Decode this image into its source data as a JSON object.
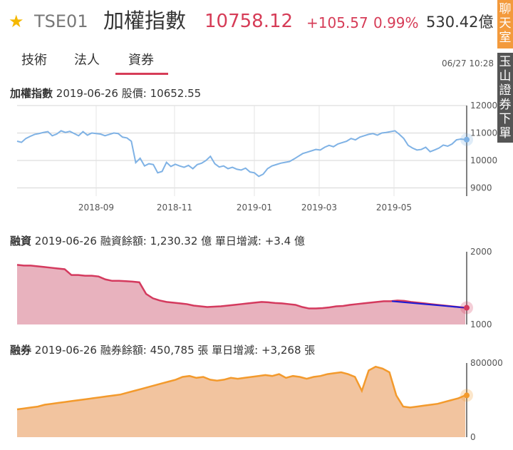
{
  "header": {
    "symbol": "TSE01",
    "name": "加權指數",
    "price": "10758.12",
    "change": "+105.57",
    "change_pct": "0.99%",
    "volume": "530.42億",
    "star_icon": "star-icon"
  },
  "tabs": [
    {
      "label": "技術",
      "active": false
    },
    {
      "label": "法人",
      "active": false
    },
    {
      "label": "資券",
      "active": true
    }
  ],
  "datetime": "06/27 10:28",
  "side_buttons": {
    "first": "聊天室",
    "second": "玉山證券下單"
  },
  "colors": {
    "up": "#d63c57",
    "index_line": "#7fb2e5",
    "margin_fill": "#e8b2be",
    "margin_line": "#d43a5e",
    "margin_trend": "#1a1ad6",
    "short_fill": "#f2c49f",
    "short_line": "#f39a2c",
    "tab_active": "#d63c57",
    "side_orange": "#f39a3c",
    "side_dark": "#555555"
  },
  "panels": {
    "index": {
      "name": "加權指數",
      "date": "2019-06-26",
      "metric": "股價:",
      "value": "10652.55"
    },
    "margin": {
      "name": "融資",
      "date": "2019-06-26",
      "text": "融資餘額: 1,230.32 億 單日增減: +3.4 億"
    },
    "short": {
      "name": "融券",
      "date": "2019-06-26",
      "text": "融券餘額: 450,785 張 單日增減: +3,268 張"
    }
  },
  "chart_data": [
    {
      "type": "line",
      "title": "加權指數 2019-06-26 股價: 10652.55",
      "x_ticks": [
        "2018-09",
        "2018-11",
        "2019-01",
        "2019-03",
        "2019-05"
      ],
      "y_ticks": [
        12000,
        11000,
        10000,
        9000
      ],
      "ylim": [
        8700,
        12000
      ],
      "series": [
        {
          "values": [
            10700,
            10660,
            10800,
            10880,
            10950,
            10980,
            11020,
            11050,
            10900,
            10960,
            11080,
            11020,
            11060,
            10980,
            10900,
            11050,
            10920,
            11000,
            10980,
            10960,
            10900,
            10950,
            11000,
            10980,
            10850,
            10820,
            10700,
            9920,
            10080,
            9800,
            9880,
            9850,
            9550,
            9600,
            9930,
            9780,
            9860,
            9800,
            9750,
            9820,
            9700,
            9850,
            9900,
            10000,
            10150,
            9880,
            9760,
            9800,
            9700,
            9750,
            9680,
            9650,
            9720,
            9580,
            9550,
            9420,
            9500,
            9700,
            9800,
            9850,
            9900,
            9930,
            9960,
            10050,
            10150,
            10250,
            10300,
            10350,
            10400,
            10380,
            10480,
            10550,
            10500,
            10600,
            10650,
            10700,
            10800,
            10750,
            10850,
            10900,
            10950,
            10980,
            10920,
            11000,
            11020,
            11050,
            11080,
            10950,
            10800,
            10550,
            10450,
            10380,
            10400,
            10480,
            10320,
            10380,
            10450,
            10560,
            10520,
            10600,
            10750,
            10780,
            10758
          ]
        }
      ],
      "grid": true
    },
    {
      "type": "area",
      "title": "融資 2019-06-26 融資餘額: 1,230.32 億 單日增減: +3.4 億",
      "y_ticks": [
        2000,
        1000
      ],
      "ylim": [
        1000,
        2000
      ],
      "series": [
        {
          "values": [
            1820,
            1810,
            1810,
            1800,
            1790,
            1780,
            1770,
            1760,
            1680,
            1680,
            1670,
            1670,
            1660,
            1620,
            1600,
            1600,
            1595,
            1590,
            1580,
            1420,
            1360,
            1330,
            1310,
            1300,
            1290,
            1280,
            1260,
            1250,
            1240,
            1245,
            1250,
            1260,
            1270,
            1280,
            1290,
            1300,
            1310,
            1305,
            1295,
            1290,
            1280,
            1270,
            1240,
            1220,
            1220,
            1225,
            1235,
            1250,
            1255,
            1270,
            1280,
            1290,
            1300,
            1310,
            1320,
            1320,
            1330,
            1325,
            1310,
            1300,
            1290,
            1280,
            1270,
            1260,
            1250,
            1240,
            1230
          ]
        }
      ],
      "trend": {
        "from": 1320,
        "to": 1230
      },
      "grid": true
    },
    {
      "type": "area",
      "title": "融券 2019-06-26 融券餘額: 450,785 張 單日增減: +3,268 張",
      "y_ticks": [
        800000,
        0
      ],
      "ylim": [
        0,
        800000
      ],
      "series": [
        {
          "values": [
            300000,
            310000,
            320000,
            330000,
            350000,
            360000,
            370000,
            380000,
            390000,
            400000,
            410000,
            420000,
            430000,
            440000,
            450000,
            460000,
            480000,
            500000,
            520000,
            540000,
            560000,
            580000,
            600000,
            620000,
            650000,
            660000,
            640000,
            650000,
            620000,
            610000,
            620000,
            640000,
            630000,
            640000,
            650000,
            660000,
            670000,
            660000,
            680000,
            640000,
            660000,
            650000,
            630000,
            650000,
            660000,
            680000,
            690000,
            700000,
            680000,
            650000,
            500000,
            720000,
            760000,
            740000,
            700000,
            450000,
            330000,
            320000,
            330000,
            340000,
            350000,
            360000,
            380000,
            400000,
            420000,
            450785
          ]
        }
      ],
      "grid": true
    }
  ]
}
